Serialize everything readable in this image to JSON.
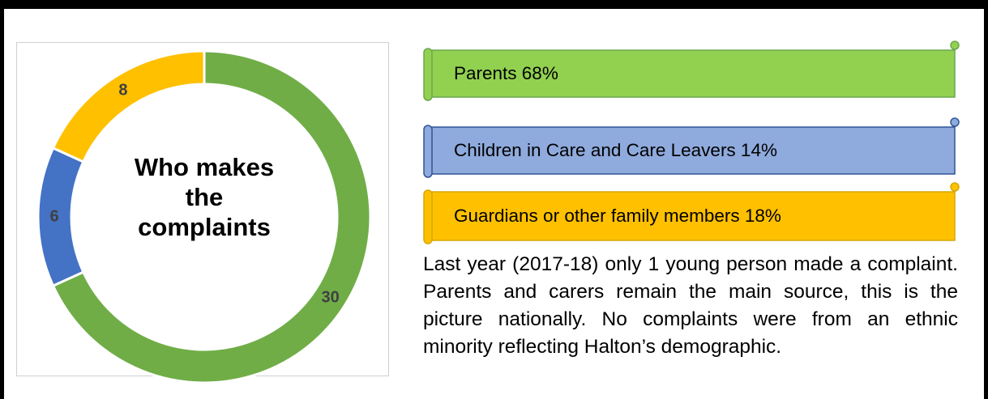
{
  "chart_data": {
    "type": "donut",
    "title": "Who makes the complaints",
    "values": [
      30,
      6,
      8
    ],
    "colors": [
      "#70ad47",
      "#4472c4",
      "#ffc000"
    ]
  },
  "banners": [
    {
      "text": "Parents 68%",
      "color": "#92d050",
      "border": "#6aa84f"
    },
    {
      "text": "Children in Care and Care Leavers 14%",
      "color": "#8faadc",
      "border": "#2f5597"
    },
    {
      "text": "Guardians or other family members 18%",
      "color": "#ffc000",
      "border": "#d6a800"
    }
  ],
  "text": "Last year (2017-18) only 1 young person made a complaint. Parents and carers remain the main source, this is the picture nationally. No complaints were from an ethnic minority reflecting Halton’s demographic."
}
